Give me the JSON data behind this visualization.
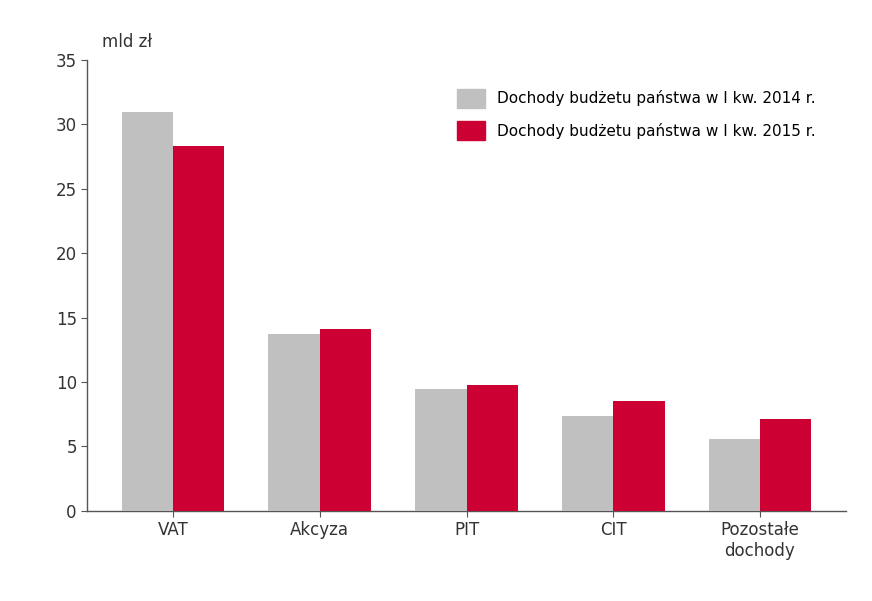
{
  "categories": [
    "VAT",
    "Akcyza",
    "PIT",
    "CIT",
    "Pozostałe\ndochody"
  ],
  "values_2014": [
    31.0,
    13.7,
    9.5,
    7.4,
    5.6
  ],
  "values_2015": [
    28.3,
    14.1,
    9.8,
    8.5,
    7.1
  ],
  "color_2014": "#c0c0c0",
  "color_2015": "#cc0033",
  "legend_2014": "Dochody budżetu państwa w I kw. 2014 r.",
  "legend_2015": "Dochody budżetu państwa w I kw. 2015 r.",
  "ylabel_text": "mld zł",
  "ylim": [
    0,
    35
  ],
  "yticks": [
    0,
    5,
    10,
    15,
    20,
    25,
    30,
    35
  ],
  "background_color": "#ffffff",
  "bar_width": 0.35,
  "tick_fontsize": 12,
  "legend_fontsize": 11,
  "spine_color": "#555555",
  "tick_color": "#555555"
}
